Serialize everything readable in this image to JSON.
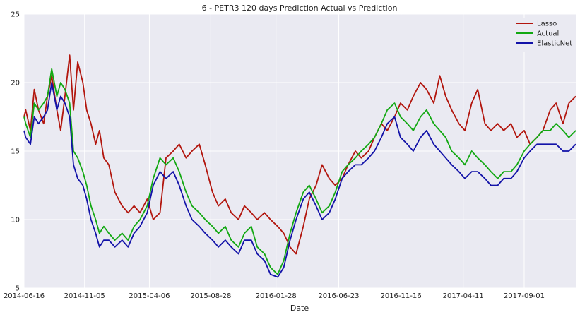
{
  "chart_data": {
    "type": "line",
    "title": "6 - PETR3 120 days Prediction Actual vs Prediction",
    "xlabel": "Date",
    "ylabel": "",
    "xlim": [
      "2014-06-16",
      "2017-12-31"
    ],
    "ylim": [
      5,
      25
    ],
    "x_ticks": [
      "2014-06-16",
      "2014-11-05",
      "2015-04-06",
      "2015-08-28",
      "2016-01-28",
      "2016-06-23",
      "2016-11-16",
      "2017-04-11",
      "2017-09-01"
    ],
    "y_ticks": [
      5,
      10,
      15,
      20,
      25
    ],
    "grid": true,
    "legend_position": "top-right",
    "x": [
      "2014-06-16",
      "2014-06-20",
      "2014-07-01",
      "2014-07-10",
      "2014-07-20",
      "2014-08-01",
      "2014-08-10",
      "2014-08-20",
      "2014-09-01",
      "2014-09-10",
      "2014-09-20",
      "2014-10-01",
      "2014-10-10",
      "2014-10-20",
      "2014-11-01",
      "2014-11-10",
      "2014-11-20",
      "2014-12-01",
      "2014-12-10",
      "2014-12-20",
      "2015-01-01",
      "2015-01-15",
      "2015-02-01",
      "2015-02-15",
      "2015-03-01",
      "2015-03-15",
      "2015-04-01",
      "2015-04-15",
      "2015-05-01",
      "2015-05-15",
      "2015-06-01",
      "2015-06-15",
      "2015-07-01",
      "2015-07-15",
      "2015-08-01",
      "2015-08-15",
      "2015-09-01",
      "2015-09-15",
      "2015-10-01",
      "2015-10-15",
      "2015-11-01",
      "2015-11-15",
      "2015-12-01",
      "2015-12-15",
      "2016-01-01",
      "2016-01-15",
      "2016-02-01",
      "2016-02-15",
      "2016-03-01",
      "2016-03-15",
      "2016-04-01",
      "2016-04-15",
      "2016-05-01",
      "2016-05-15",
      "2016-06-01",
      "2016-06-15",
      "2016-07-01",
      "2016-07-15",
      "2016-08-01",
      "2016-08-15",
      "2016-09-01",
      "2016-09-15",
      "2016-10-01",
      "2016-10-15",
      "2016-11-01",
      "2016-11-15",
      "2016-12-01",
      "2016-12-15",
      "2017-01-01",
      "2017-01-15",
      "2017-02-01",
      "2017-02-15",
      "2017-03-01",
      "2017-03-15",
      "2017-04-01",
      "2017-04-15",
      "2017-05-01",
      "2017-05-15",
      "2017-06-01",
      "2017-06-15",
      "2017-07-01",
      "2017-07-15",
      "2017-08-01",
      "2017-08-15",
      "2017-09-01",
      "2017-09-15",
      "2017-10-01",
      "2017-10-15",
      "2017-11-01",
      "2017-11-15",
      "2017-12-01",
      "2017-12-15",
      "2017-12-31"
    ],
    "series": [
      {
        "name": "Lasso",
        "color": "#b2150d",
        "values": [
          17.5,
          18.0,
          16.5,
          19.5,
          18.0,
          17.0,
          19.0,
          20.5,
          18.0,
          16.5,
          19.0,
          22.0,
          18.0,
          21.5,
          20.0,
          18.0,
          17.0,
          15.5,
          16.5,
          14.5,
          14.0,
          12.0,
          11.0,
          10.5,
          11.0,
          10.5,
          11.5,
          10.0,
          10.5,
          14.5,
          15.0,
          15.5,
          14.5,
          15.0,
          15.5,
          14.0,
          12.0,
          11.0,
          11.5,
          10.5,
          10.0,
          11.0,
          10.5,
          10.0,
          10.5,
          10.0,
          9.5,
          9.0,
          8.0,
          7.5,
          9.5,
          11.5,
          12.5,
          14.0,
          13.0,
          12.5,
          13.0,
          14.0,
          15.0,
          14.5,
          15.0,
          16.0,
          17.0,
          16.5,
          17.5,
          18.5,
          18.0,
          19.0,
          20.0,
          19.5,
          18.5,
          20.5,
          19.0,
          18.0,
          17.0,
          16.5,
          18.5,
          19.5,
          17.0,
          16.5,
          17.0,
          16.5,
          17.0,
          16.0,
          16.5,
          15.5,
          16.0,
          16.5,
          18.0,
          18.5,
          17.0,
          18.5,
          19.0
        ]
      },
      {
        "name": "Actual",
        "color": "#12a812",
        "values": [
          17.5,
          17.0,
          16.0,
          18.5,
          18.0,
          18.5,
          19.0,
          21.0,
          19.0,
          20.0,
          19.5,
          18.5,
          15.0,
          14.5,
          13.5,
          12.5,
          11.0,
          10.0,
          9.0,
          9.5,
          9.0,
          8.5,
          9.0,
          8.5,
          9.5,
          10.0,
          11.0,
          13.0,
          14.5,
          14.0,
          14.5,
          13.5,
          12.0,
          11.0,
          10.5,
          10.0,
          9.5,
          9.0,
          9.5,
          8.5,
          8.0,
          9.0,
          9.5,
          8.0,
          7.5,
          6.5,
          6.0,
          7.0,
          9.0,
          10.5,
          12.0,
          12.5,
          11.5,
          10.5,
          11.0,
          12.0,
          13.5,
          14.0,
          14.5,
          15.0,
          15.5,
          16.0,
          17.0,
          18.0,
          18.5,
          17.5,
          17.0,
          16.5,
          17.5,
          18.0,
          17.0,
          16.5,
          16.0,
          15.0,
          14.5,
          14.0,
          15.0,
          14.5,
          14.0,
          13.5,
          13.0,
          13.5,
          13.5,
          14.0,
          15.0,
          15.5,
          16.0,
          16.5,
          16.5,
          17.0,
          16.5,
          16.0,
          16.5
        ]
      },
      {
        "name": "ElasticNet",
        "color": "#1212a8",
        "values": [
          16.5,
          16.0,
          15.5,
          17.5,
          17.0,
          17.5,
          18.0,
          20.0,
          18.0,
          19.0,
          18.5,
          17.5,
          14.0,
          13.0,
          12.5,
          11.5,
          10.0,
          9.0,
          8.0,
          8.5,
          8.5,
          8.0,
          8.5,
          8.0,
          9.0,
          9.5,
          10.5,
          12.5,
          13.5,
          13.0,
          13.5,
          12.5,
          11.0,
          10.0,
          9.5,
          9.0,
          8.5,
          8.0,
          8.5,
          8.0,
          7.5,
          8.5,
          8.5,
          7.5,
          7.0,
          6.0,
          5.8,
          6.5,
          8.5,
          10.0,
          11.5,
          12.0,
          11.0,
          10.0,
          10.5,
          11.5,
          13.0,
          13.5,
          14.0,
          14.0,
          14.5,
          15.0,
          16.0,
          17.0,
          17.5,
          16.0,
          15.5,
          15.0,
          16.0,
          16.5,
          15.5,
          15.0,
          14.5,
          14.0,
          13.5,
          13.0,
          13.5,
          13.5,
          13.0,
          12.5,
          12.5,
          13.0,
          13.0,
          13.5,
          14.5,
          15.0,
          15.5,
          15.5,
          15.5,
          15.5,
          15.0,
          15.0,
          15.5
        ]
      }
    ]
  }
}
